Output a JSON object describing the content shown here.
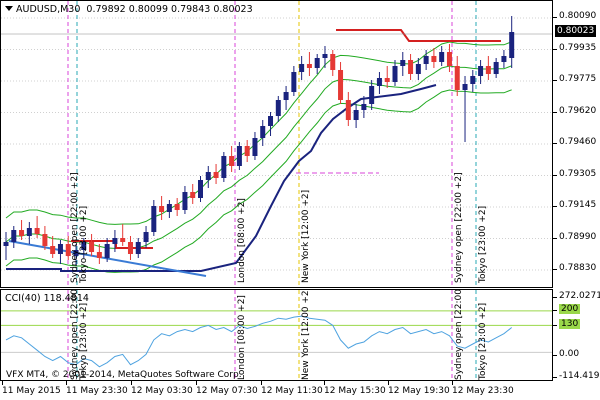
{
  "header": {
    "symbol_tf": "AUDUSD,M30",
    "ohlc": "0.79892 0.80099 0.79843 0.80023"
  },
  "price_axis": [
    "0.80090",
    "0.79935",
    "0.79775",
    "0.79620",
    "0.79460",
    "0.79305",
    "0.79145",
    "0.78990",
    "0.78830"
  ],
  "current_price": "0.80023",
  "cci": {
    "label": "CCI(40) 118.4814",
    "axis": [
      "272.0271",
      "200",
      "130",
      "0.00",
      "-114.4199"
    ]
  },
  "copyright": "VFX MT4, © 2001-2014, MetaQuotes Software Corp.",
  "time_axis": [
    "11 May 2015",
    "11 May 23:30",
    "12 May 03:30",
    "12 May 07:30",
    "12 May 11:30",
    "12 May 15:30",
    "12 May 19:30",
    "12 May 23:30"
  ],
  "sessions": {
    "main": [
      "Sydney open [22:00 +2]",
      "Tokyo [23:00 +2]",
      "London [08:00 +2]",
      "New York [12:00 +2]",
      "Sydney open [22:00 +2]",
      "Tokyo [23:00 +2]"
    ],
    "cci": [
      "Sydney open [22:00 +2]",
      "Tokyo [23:00 +2]",
      "London [08:00 +2]",
      "New York [12:00 +2]",
      "Sydney open [22:00 +2]",
      "Tokyo [23:00 +2]"
    ]
  },
  "colors": {
    "bull": "#1a237e",
    "bear": "#e53935",
    "bands": "#22aa22",
    "cci_line": "#4fa3e0",
    "sydney": "#d946d9",
    "tokyo": "#2aa9b5",
    "london": "#d946d9",
    "newyork": "#e6c400"
  },
  "chart_data": {
    "type": "candlestick",
    "symbol": "AUDUSD",
    "timeframe": "M30",
    "candles": [
      [
        0.7895,
        0.7902,
        0.7888,
        0.7897
      ],
      [
        0.7897,
        0.7905,
        0.7894,
        0.7903
      ],
      [
        0.7903,
        0.7908,
        0.7898,
        0.79
      ],
      [
        0.79,
        0.7907,
        0.7896,
        0.7904
      ],
      [
        0.7904,
        0.791,
        0.7899,
        0.7901
      ],
      [
        0.7901,
        0.7905,
        0.7893,
        0.7895
      ],
      [
        0.7895,
        0.79,
        0.7889,
        0.7891
      ],
      [
        0.7891,
        0.7898,
        0.7886,
        0.7896
      ],
      [
        0.7896,
        0.79,
        0.7888,
        0.789
      ],
      [
        0.789,
        0.7896,
        0.7885,
        0.7893
      ],
      [
        0.7893,
        0.7899,
        0.7889,
        0.7897
      ],
      [
        0.7897,
        0.7901,
        0.789,
        0.7892
      ],
      [
        0.7892,
        0.7896,
        0.7886,
        0.7889
      ],
      [
        0.7889,
        0.7899,
        0.7887,
        0.7896
      ],
      [
        0.7896,
        0.7903,
        0.7892,
        0.7899
      ],
      [
        0.7899,
        0.7906,
        0.7895,
        0.7897
      ],
      [
        0.7897,
        0.79,
        0.7888,
        0.7891
      ],
      [
        0.7891,
        0.7899,
        0.7889,
        0.7897
      ],
      [
        0.7897,
        0.7905,
        0.7894,
        0.7902
      ],
      [
        0.7902,
        0.7918,
        0.79,
        0.7915
      ],
      [
        0.7915,
        0.792,
        0.7908,
        0.7912
      ],
      [
        0.7912,
        0.7918,
        0.7909,
        0.7916
      ],
      [
        0.7916,
        0.7919,
        0.791,
        0.7913
      ],
      [
        0.7913,
        0.7925,
        0.7911,
        0.7922
      ],
      [
        0.7922,
        0.7926,
        0.7916,
        0.7919
      ],
      [
        0.7919,
        0.793,
        0.7917,
        0.7928
      ],
      [
        0.7928,
        0.7935,
        0.7924,
        0.7932
      ],
      [
        0.7932,
        0.7936,
        0.7926,
        0.7929
      ],
      [
        0.7929,
        0.7942,
        0.7927,
        0.794
      ],
      [
        0.794,
        0.7945,
        0.7932,
        0.7935
      ],
      [
        0.7935,
        0.7947,
        0.7933,
        0.7945
      ],
      [
        0.7945,
        0.7948,
        0.7937,
        0.794
      ],
      [
        0.794,
        0.7952,
        0.7938,
        0.7949
      ],
      [
        0.7949,
        0.7958,
        0.7945,
        0.7955
      ],
      [
        0.7955,
        0.7962,
        0.795,
        0.796
      ],
      [
        0.796,
        0.797,
        0.7957,
        0.7968
      ],
      [
        0.7968,
        0.7975,
        0.7963,
        0.7972
      ],
      [
        0.7972,
        0.7985,
        0.797,
        0.7982
      ],
      [
        0.7982,
        0.799,
        0.7978,
        0.7986
      ],
      [
        0.7986,
        0.7992,
        0.798,
        0.7984
      ],
      [
        0.7984,
        0.7991,
        0.7981,
        0.7989
      ],
      [
        0.7989,
        0.7995,
        0.7984,
        0.7991
      ],
      [
        0.7991,
        0.7993,
        0.798,
        0.7983
      ],
      [
        0.7983,
        0.7987,
        0.7966,
        0.7968
      ],
      [
        0.7968,
        0.7972,
        0.7955,
        0.7958
      ],
      [
        0.7958,
        0.7966,
        0.7954,
        0.7963
      ],
      [
        0.7963,
        0.797,
        0.7959,
        0.7966
      ],
      [
        0.7966,
        0.7978,
        0.7963,
        0.7975
      ],
      [
        0.7975,
        0.7982,
        0.7971,
        0.7979
      ],
      [
        0.7979,
        0.7985,
        0.7974,
        0.7977
      ],
      [
        0.7977,
        0.7988,
        0.7975,
        0.7985
      ],
      [
        0.7985,
        0.7992,
        0.798,
        0.7988
      ],
      [
        0.7988,
        0.7991,
        0.7978,
        0.7981
      ],
      [
        0.7981,
        0.7989,
        0.7978,
        0.7986
      ],
      [
        0.7986,
        0.7993,
        0.7983,
        0.799
      ],
      [
        0.799,
        0.7994,
        0.7984,
        0.7987
      ],
      [
        0.7987,
        0.7995,
        0.7985,
        0.7992
      ],
      [
        0.7992,
        0.7996,
        0.7982,
        0.7985
      ],
      [
        0.7985,
        0.799,
        0.797,
        0.7973
      ],
      [
        0.7973,
        0.798,
        0.7947,
        0.7976
      ],
      [
        0.7976,
        0.7983,
        0.7972,
        0.798
      ],
      [
        0.798,
        0.7988,
        0.7976,
        0.7985
      ],
      [
        0.7985,
        0.799,
        0.7978,
        0.7981
      ],
      [
        0.7981,
        0.7989,
        0.7979,
        0.7987
      ],
      [
        0.7987,
        0.7993,
        0.7984,
        0.799
      ],
      [
        0.7989,
        0.801,
        0.7984,
        0.8002
      ]
    ]
  }
}
